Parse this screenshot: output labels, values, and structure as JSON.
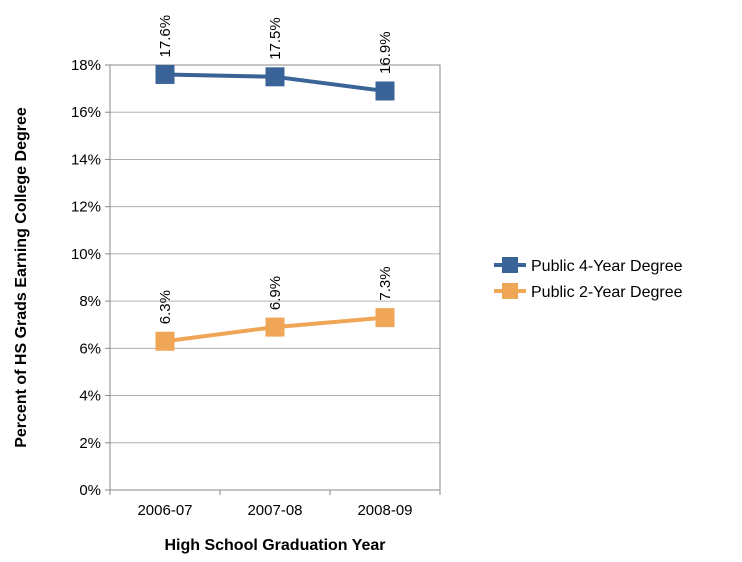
{
  "chart_data": {
    "type": "line",
    "title": "",
    "xlabel": "High School Graduation Year",
    "ylabel": "Percent of HS Grads Earning College Degree",
    "categories": [
      "2006-07",
      "2007-08",
      "2008-09"
    ],
    "ylim": [
      0,
      18
    ],
    "yticks": [
      0,
      2,
      4,
      6,
      8,
      10,
      12,
      14,
      16,
      18
    ],
    "ytick_labels": [
      "0%",
      "2%",
      "4%",
      "6%",
      "8%",
      "10%",
      "12%",
      "14%",
      "16%",
      "18%"
    ],
    "grid": true,
    "legend_position": "right",
    "series": [
      {
        "name": "Public 4-Year Degree",
        "color": "#3A6398",
        "values": [
          17.6,
          17.5,
          16.9
        ],
        "labels": [
          "17.6%",
          "17.5%",
          "16.9%"
        ]
      },
      {
        "name": "Public 2-Year Degree",
        "color": "#F0A657",
        "values": [
          6.3,
          6.9,
          7.3
        ],
        "labels": [
          "6.3%",
          "6.9%",
          "7.3%"
        ]
      }
    ]
  }
}
